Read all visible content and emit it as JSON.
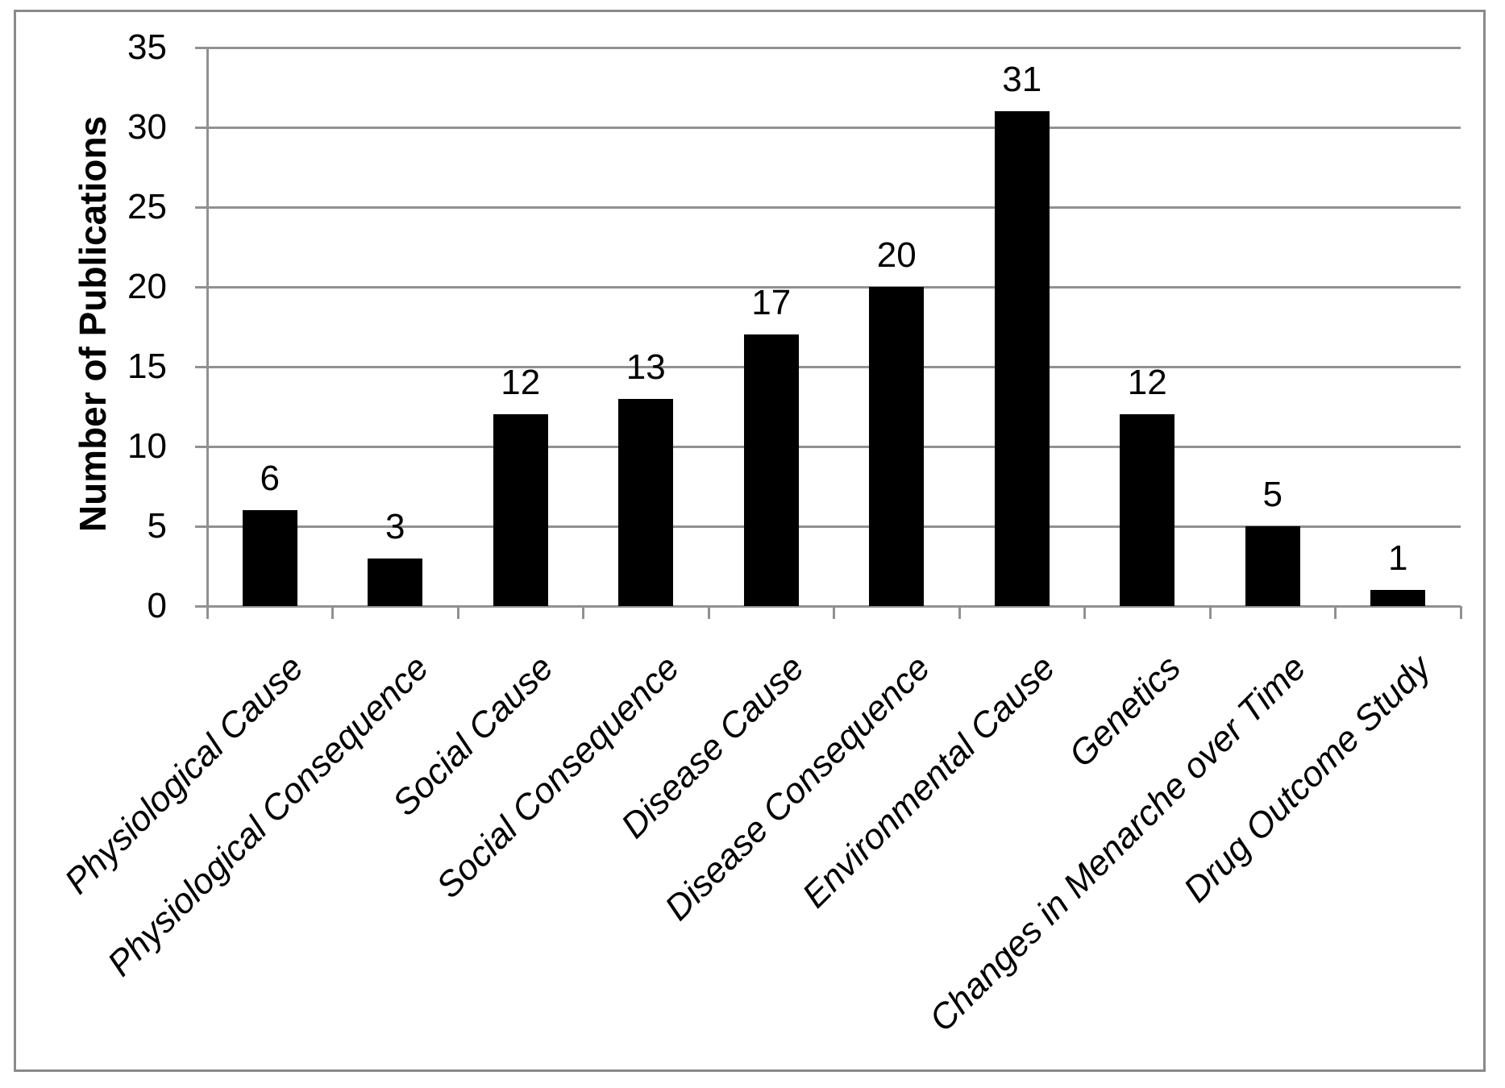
{
  "chart_data": {
    "type": "bar",
    "title": "",
    "xlabel": "",
    "ylabel": "Number of Publications",
    "categories": [
      "Physiological Cause",
      "Physiological Consequence",
      "Social Cause",
      "Social Consequence",
      "Disease Cause",
      "Disease Consequence",
      "Environmental Cause",
      "Genetics",
      "Changes in Menarche over Time",
      "Drug Outcome Study"
    ],
    "values": [
      6,
      3,
      12,
      13,
      17,
      20,
      31,
      12,
      5,
      1
    ],
    "value_labels": [
      "6",
      "3",
      "12",
      "13",
      "17",
      "20",
      "31",
      "12",
      "5",
      "1"
    ],
    "yticks": [
      0,
      5,
      10,
      15,
      20,
      25,
      30,
      35
    ],
    "ylim": [
      0,
      35
    ],
    "grid": true,
    "legend": false,
    "colors": {
      "bar": "#000000",
      "gridline": "#919191",
      "axis": "#8a8a8a",
      "text": "#000000",
      "background": "#ffffff"
    }
  }
}
